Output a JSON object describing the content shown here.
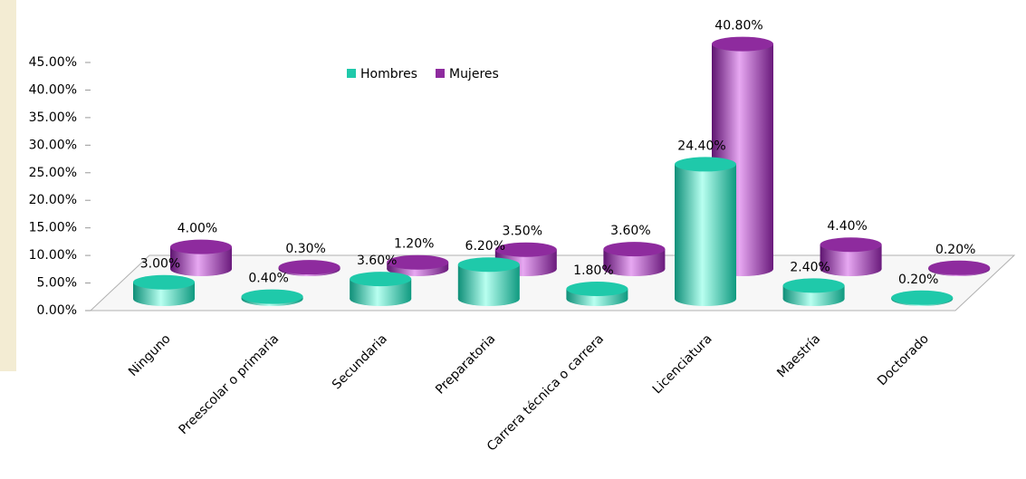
{
  "chart_data": {
    "type": "bar3d",
    "categories": [
      "Ninguno",
      "Preescolar o primaria",
      "Secundaria",
      "Preparatoria",
      "Carrera técnica o carrera",
      "Licenciatura",
      "Maestría",
      "Doctorado"
    ],
    "series": [
      {
        "name": "Hombres",
        "color": "#1fc9aa",
        "values": [
          3.0,
          0.4,
          3.6,
          6.2,
          1.8,
          24.4,
          2.4,
          0.2
        ],
        "value_labels": [
          "3.00%",
          "0.40%",
          "3.60%",
          "6.20%",
          "1.80%",
          "24.40%",
          "2.40%",
          "0.20%"
        ]
      },
      {
        "name": "Mujeres",
        "color": "#8e2b9e",
        "values": [
          4.0,
          0.3,
          1.2,
          3.5,
          3.6,
          40.8,
          4.4,
          0.2
        ],
        "value_labels": [
          "4.00%",
          "0.30%",
          "1.20%",
          "3.50%",
          "3.60%",
          "40.80%",
          "4.40%",
          "0.20%"
        ]
      }
    ],
    "ylim": [
      0,
      45
    ],
    "yticks": [
      {
        "value": 0,
        "label": "0.00%"
      },
      {
        "value": 5,
        "label": "5.00%"
      },
      {
        "value": 10,
        "label": "10.00%"
      },
      {
        "value": 15,
        "label": "15.00%"
      },
      {
        "value": 20,
        "label": "20.00%"
      },
      {
        "value": 25,
        "label": "25.00%"
      },
      {
        "value": 30,
        "label": "30.00%"
      },
      {
        "value": 35,
        "label": "35.00%"
      },
      {
        "value": 40,
        "label": "40.00%"
      },
      {
        "value": 45,
        "label": "45.00%"
      }
    ],
    "legend": "top"
  }
}
